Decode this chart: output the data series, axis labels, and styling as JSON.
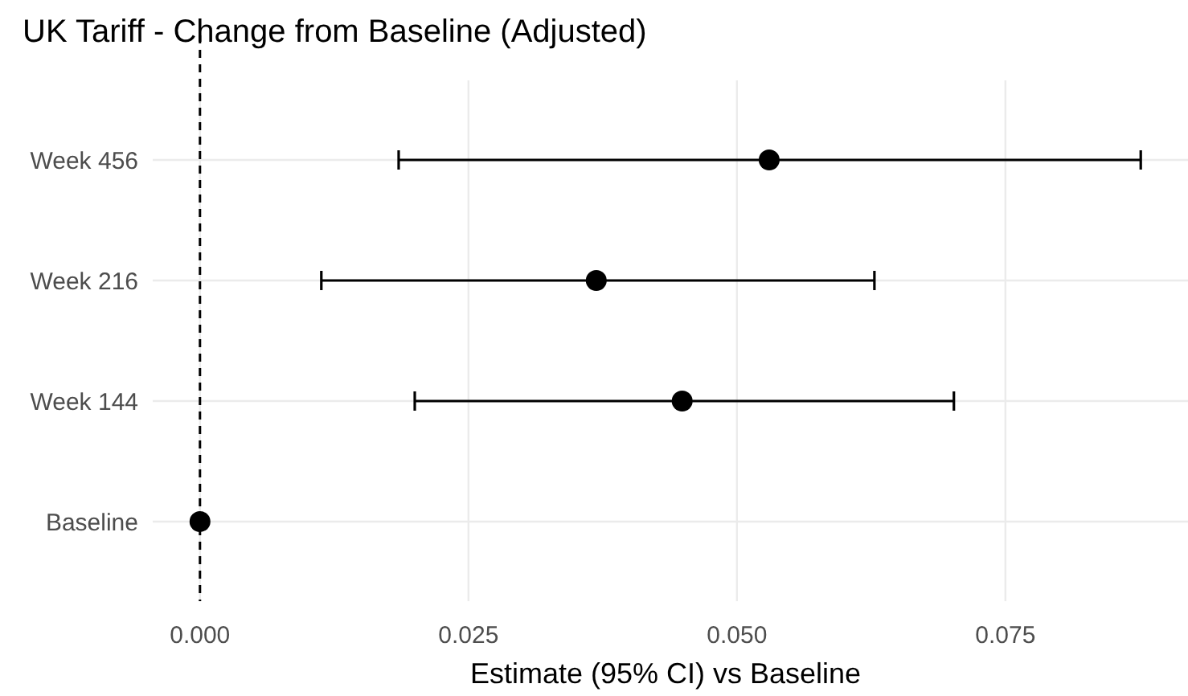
{
  "chart_data": {
    "type": "scatter",
    "orientation": "horizontal",
    "title": "UK Tariff - Change from Baseline (Adjusted)",
    "xlabel": "Estimate (95% CI) vs Baseline",
    "categories": [
      "Week 456",
      "Week 216",
      "Week 144",
      "Baseline"
    ],
    "series": [
      {
        "color": "#000000",
        "values": [
          0.053,
          0.0369,
          0.0449,
          0
        ],
        "errors": [
          [
            0.0185,
            0.0876
          ],
          [
            0.0113,
            0.0628
          ],
          [
            0.02,
            0.0702
          ],
          null
        ]
      }
    ],
    "xlim": [
      -0.0044,
      0.092
    ],
    "xticks": [
      {
        "value": 0,
        "label": "0.000"
      },
      {
        "value": 0.025,
        "label": "0.025"
      },
      {
        "value": 0.05,
        "label": "0.050"
      },
      {
        "value": 0.075,
        "label": "0.075"
      }
    ],
    "ref_lines": [
      {
        "axis": "x",
        "value": 0,
        "line_style": "dashed",
        "color": "#000000"
      }
    ],
    "grid": true,
    "marker": "circle"
  }
}
